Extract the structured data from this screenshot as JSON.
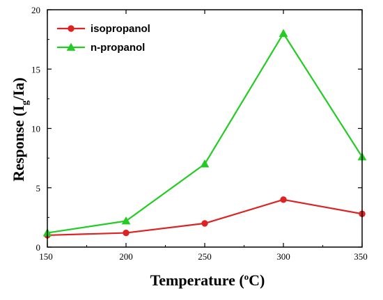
{
  "chart_data": {
    "type": "line",
    "x": [
      150,
      200,
      250,
      300,
      350
    ],
    "series": [
      {
        "name": "isopropanol",
        "values": [
          1.0,
          1.2,
          2.0,
          4.0,
          2.8
        ],
        "color": "#dd2222",
        "marker": "circle"
      },
      {
        "name": "n-propanol",
        "values": [
          1.2,
          2.2,
          7.0,
          18.0,
          7.6
        ],
        "color": "#22cc22",
        "marker": "triangle"
      }
    ],
    "xlabel": "Temperature (",
    "xlabel_sup": "o",
    "xlabel_tail": "C)",
    "ylabel": "Response (I",
    "ylabel_sub": "g",
    "ylabel_tail": "/Ia)",
    "xlim": [
      150,
      350
    ],
    "ylim": [
      0,
      20
    ],
    "xticks": [
      "150",
      "200",
      "250",
      "300",
      "350"
    ],
    "yticks": [
      "0",
      "5",
      "10",
      "15",
      "20"
    ],
    "grid": false,
    "legend_position": "top-left"
  }
}
